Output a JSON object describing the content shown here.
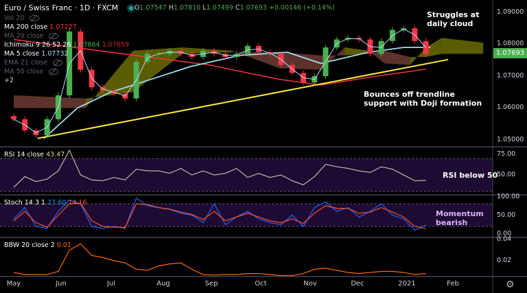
{
  "header": {
    "title": "Euro / Swiss Franc · 1D · FXCM",
    "open": "1.07547",
    "high": "1.07810",
    "low": "1.07499",
    "close": "1.07693",
    "change": "+0.00146 (+0.14%)",
    "o": "O",
    "h": "H",
    "l": "L",
    "c": "C"
  },
  "legend": {
    "vol": "Vol 20",
    "ma200": {
      "label": "MA 200 close",
      "value": "1.07227"
    },
    "ma20": "MA 20 close",
    "ichimoku": {
      "label": "Ichimoku 9 26 52 26",
      "v1": "1.07864",
      "v2": "1.07659"
    },
    "ma5": {
      "label": "MA 5 close",
      "value": "1.07732"
    },
    "ema21": "EMA 21 close",
    "ma50": "MA 50 close",
    "more": "+2",
    "rsi": {
      "label": "RSI 14 close",
      "value": "43.47"
    },
    "stoch": {
      "label": "Stoch 14 3 1",
      "k": "23.60",
      "d": "14.16"
    },
    "bbw": {
      "label": "BBW 20 close 2",
      "value": "0.01"
    }
  },
  "annotations": {
    "cloud": [
      "Struggles at",
      "daily cloud"
    ],
    "trendline": [
      "Bounces off trendline",
      "support with Doji formation"
    ],
    "rsi": "RSI below 50",
    "stoch": [
      "Momentum",
      "bearish"
    ]
  },
  "price_axis": [
    "1.09000",
    "1.08000",
    "1.07000",
    "1.06000",
    "1.05000"
  ],
  "current_price": "1.07693",
  "rsi_axis": [
    "75.00",
    "50.00"
  ],
  "stoch_axis": [
    "100.00",
    "50.00",
    "0.00"
  ],
  "bbw_axis": [
    "0.04",
    "0.02"
  ],
  "time_axis": [
    "May",
    "Jun",
    "Jul",
    "Aug",
    "Sep",
    "Oct",
    "Nov",
    "Dec",
    "2021",
    "Feb"
  ],
  "colors": {
    "up": "#4caf50",
    "down": "#f23645",
    "ma200": "#f23645",
    "ma5": "#b2dfff",
    "kijun": "#9fdfef",
    "trend": "#ffeb3b",
    "cloud_bull": "#6b6b00",
    "cloud_bear": "#6e3b34",
    "rsi": "#e0d8c0",
    "stoch_k": "#2962ff",
    "stoch_d": "#f7532b",
    "bbw": "#ff6d00",
    "band": "#1e0b33",
    "tag": "#4caf50"
  },
  "chart_data": {
    "type": "candlestick",
    "symbol": "Euro / Swiss Franc",
    "interval": "1D",
    "price_range": [
      1.048,
      1.093
    ],
    "dates": [
      "2020-05-01",
      "2020-05-08",
      "2020-05-15",
      "2020-05-22",
      "2020-05-29",
      "2020-06-05",
      "2020-06-12",
      "2020-06-19",
      "2020-06-26",
      "2020-07-03",
      "2020-07-10",
      "2020-07-17",
      "2020-07-24",
      "2020-07-31",
      "2020-08-07",
      "2020-08-14",
      "2020-08-21",
      "2020-08-28",
      "2020-09-04",
      "2020-09-11",
      "2020-09-18",
      "2020-09-25",
      "2020-10-02",
      "2020-10-09",
      "2020-10-16",
      "2020-10-23",
      "2020-10-30",
      "2020-11-06",
      "2020-11-13",
      "2020-11-20",
      "2020-11-27",
      "2020-12-04",
      "2020-12-11",
      "2020-12-18",
      "2020-12-25",
      "2021-01-01",
      "2021-01-08",
      "2021-01-15"
    ],
    "close": [
      1.0565,
      1.053,
      1.0515,
      1.0565,
      1.064,
      1.084,
      1.072,
      1.0665,
      1.0655,
      1.0645,
      1.063,
      1.0745,
      1.077,
      1.077,
      1.078,
      1.077,
      1.076,
      1.078,
      1.077,
      1.076,
      1.077,
      1.0795,
      1.0775,
      1.077,
      1.0735,
      1.071,
      1.068,
      1.07,
      1.079,
      1.0815,
      1.082,
      1.0815,
      1.077,
      1.081,
      1.0845,
      1.085,
      1.081,
      1.0769
    ],
    "ma200": [
      [
        "2020-05-01",
        1.0815
      ],
      [
        "2020-07-01",
        1.0775
      ],
      [
        "2020-09-01",
        1.0735
      ],
      [
        "2020-10-15",
        1.069
      ],
      [
        "2020-11-10",
        1.0672
      ],
      [
        "2020-12-15",
        1.07
      ],
      [
        "2021-01-15",
        1.0722
      ]
    ],
    "kijun_line": [
      [
        "2020-05-20",
        1.0505
      ],
      [
        "2020-06-10",
        1.06
      ],
      [
        "2020-07-01",
        1.065
      ],
      [
        "2020-07-20",
        1.068
      ],
      [
        "2020-08-20",
        1.073
      ],
      [
        "2020-09-20",
        1.0765
      ],
      [
        "2020-10-20",
        1.0775
      ],
      [
        "2020-11-10",
        1.074
      ],
      [
        "2020-12-10",
        1.0775
      ],
      [
        "2021-01-01",
        1.079
      ],
      [
        "2021-01-18",
        1.079
      ]
    ],
    "trendline": [
      [
        "2020-05-16",
        1.0505
      ],
      [
        "2021-01-29",
        1.0752
      ]
    ],
    "cloud": [
      [
        "2020-05-01",
        1.06,
        1.064
      ],
      [
        "2020-06-15",
        1.06,
        1.063
      ],
      [
        "2020-07-15",
        1.078,
        1.065
      ],
      [
        "2020-08-15",
        1.079,
        1.077
      ],
      [
        "2020-09-15",
        1.078,
        1.0775
      ],
      [
        "2020-10-15",
        1.0725,
        1.0775
      ],
      [
        "2020-11-10",
        1.072,
        1.0765
      ],
      [
        "2020-11-25",
        1.079,
        1.0765
      ],
      [
        "2020-12-10",
        1.078,
        1.077
      ],
      [
        "2020-12-20",
        1.074,
        1.078
      ],
      [
        "2021-01-05",
        1.0735,
        1.076
      ],
      [
        "2021-01-15",
        1.079,
        1.076
      ],
      [
        "2021-01-25",
        1.082,
        1.077
      ],
      [
        "2021-02-20",
        1.0805,
        1.077
      ]
    ],
    "rsi": [
      35,
      48,
      42,
      45,
      55,
      80,
      50,
      44,
      43,
      47,
      44,
      57,
      55,
      55,
      52,
      58,
      50,
      55,
      50,
      52,
      58,
      47,
      52,
      47,
      50,
      43,
      38,
      48,
      63,
      60,
      58,
      55,
      53,
      60,
      57,
      50,
      43,
      43.47
    ],
    "rsi_levels": [
      70,
      30
    ],
    "stoch_k": [
      40,
      70,
      20,
      15,
      60,
      90,
      80,
      20,
      15,
      20,
      15,
      95,
      75,
      70,
      65,
      55,
      50,
      30,
      80,
      25,
      45,
      60,
      40,
      30,
      25,
      50,
      20,
      70,
      85,
      60,
      70,
      45,
      60,
      80,
      50,
      40,
      10,
      23.6
    ],
    "stoch_d": [
      35,
      60,
      30,
      18,
      50,
      80,
      82,
      35,
      20,
      18,
      17,
      80,
      78,
      70,
      66,
      58,
      52,
      38,
      60,
      35,
      45,
      55,
      45,
      35,
      30,
      40,
      28,
      55,
      75,
      68,
      68,
      55,
      58,
      70,
      58,
      45,
      20,
      14.16
    ],
    "stoch_levels": [
      80,
      20
    ],
    "bbw": [
      0.009,
      0.007,
      0.007,
      0.007,
      0.01,
      0.03,
      0.036,
      0.025,
      0.023,
      0.02,
      0.018,
      0.012,
      0.011,
      0.015,
      0.017,
      0.018,
      0.012,
      0.007,
      0.0065,
      0.007,
      0.007,
      0.008,
      0.008,
      0.007,
      0.006,
      0.006,
      0.008,
      0.012,
      0.013,
      0.011,
      0.009,
      0.008,
      0.009,
      0.01,
      0.01,
      0.009,
      0.007,
      0.008
    ]
  }
}
